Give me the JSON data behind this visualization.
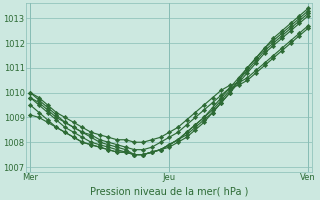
{
  "xlabel": "Pression niveau de la mer( hPa )",
  "bg_color": "#cce8e0",
  "grid_color": "#88bdb5",
  "line_color": "#2d6b35",
  "marker": "D",
  "markersize": 2.2,
  "linewidth": 0.85,
  "ylim": [
    1006.8,
    1013.6
  ],
  "xtick_labels": [
    "Mer",
    "Jeu",
    "Ven"
  ],
  "xtick_pos": [
    0,
    16,
    32
  ],
  "ytick_vals": [
    1007,
    1008,
    1009,
    1010,
    1011,
    1012,
    1013
  ],
  "n_points": 33,
  "lines": [
    [
      1010.0,
      1009.7,
      1009.4,
      1009.1,
      1008.8,
      1008.6,
      1008.4,
      1008.2,
      1008.0,
      1007.9,
      1007.8,
      1007.7,
      1007.5,
      1007.5,
      1007.6,
      1007.7,
      1007.8,
      1008.0,
      1008.2,
      1008.5,
      1008.8,
      1009.2,
      1009.6,
      1010.0,
      1010.5,
      1011.0,
      1011.4,
      1011.8,
      1012.2,
      1012.5,
      1012.8,
      1013.1,
      1013.4
    ],
    [
      1009.8,
      1009.5,
      1009.2,
      1008.9,
      1008.6,
      1008.4,
      1008.2,
      1008.0,
      1007.9,
      1007.8,
      1007.7,
      1007.6,
      1007.5,
      1007.5,
      1007.6,
      1007.7,
      1007.9,
      1008.1,
      1008.4,
      1008.7,
      1009.0,
      1009.4,
      1009.8,
      1010.2,
      1010.6,
      1011.0,
      1011.4,
      1011.8,
      1012.1,
      1012.4,
      1012.7,
      1013.0,
      1013.3
    ],
    [
      1009.5,
      1009.2,
      1008.9,
      1008.6,
      1008.4,
      1008.2,
      1008.0,
      1007.9,
      1007.8,
      1007.7,
      1007.6,
      1007.6,
      1007.5,
      1007.5,
      1007.6,
      1007.7,
      1007.9,
      1008.1,
      1008.4,
      1008.7,
      1009.0,
      1009.3,
      1009.7,
      1010.1,
      1010.5,
      1010.9,
      1011.3,
      1011.7,
      1012.0,
      1012.3,
      1012.6,
      1012.9,
      1013.2
    ],
    [
      1009.1,
      1009.0,
      1008.8,
      1008.6,
      1008.4,
      1008.2,
      1008.0,
      1007.9,
      1007.8,
      1007.7,
      1007.6,
      1007.6,
      1007.5,
      1007.5,
      1007.6,
      1007.7,
      1007.9,
      1008.1,
      1008.3,
      1008.6,
      1008.9,
      1009.2,
      1009.6,
      1010.0,
      1010.4,
      1010.8,
      1011.2,
      1011.6,
      1011.9,
      1012.2,
      1012.5,
      1012.8,
      1013.1
    ],
    [
      1010.0,
      1009.8,
      1009.5,
      1009.2,
      1009.0,
      1008.8,
      1008.6,
      1008.4,
      1008.3,
      1008.2,
      1008.1,
      1008.1,
      1008.0,
      1008.0,
      1008.1,
      1008.2,
      1008.4,
      1008.6,
      1008.9,
      1009.2,
      1009.5,
      1009.8,
      1010.1,
      1010.3,
      1010.4,
      1010.6,
      1010.9,
      1011.2,
      1011.5,
      1011.8,
      1012.1,
      1012.4,
      1012.7
    ],
    [
      1009.8,
      1009.6,
      1009.3,
      1009.0,
      1008.8,
      1008.6,
      1008.4,
      1008.3,
      1008.1,
      1008.0,
      1007.9,
      1007.8,
      1007.7,
      1007.7,
      1007.8,
      1008.0,
      1008.2,
      1008.4,
      1008.7,
      1009.0,
      1009.3,
      1009.6,
      1009.9,
      1010.2,
      1010.3,
      1010.5,
      1010.8,
      1011.1,
      1011.4,
      1011.7,
      1012.0,
      1012.3,
      1012.6
    ]
  ]
}
